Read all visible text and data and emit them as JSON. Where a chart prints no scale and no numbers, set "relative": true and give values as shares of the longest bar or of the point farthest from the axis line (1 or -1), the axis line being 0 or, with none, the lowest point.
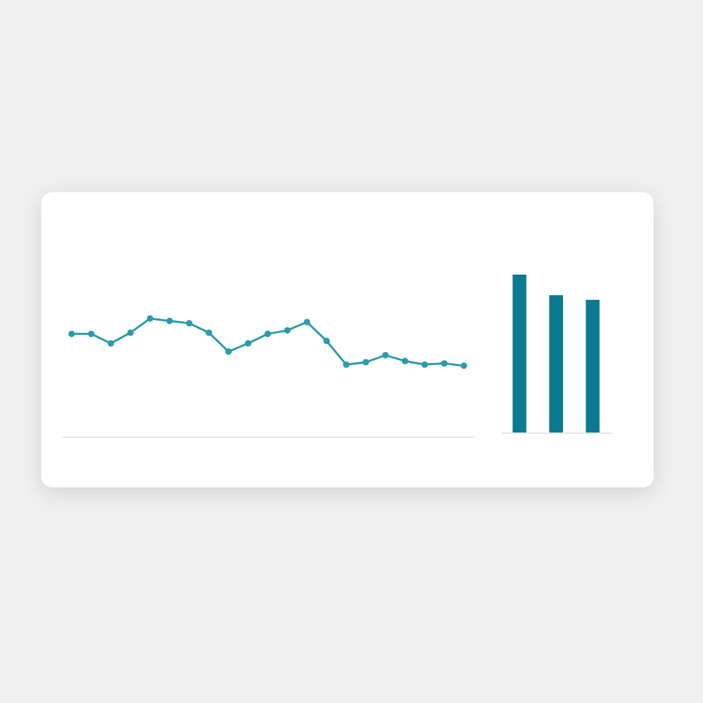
{
  "chart_data": [
    {
      "type": "line",
      "relative": true,
      "marker": "circle",
      "categories": [
        null,
        null,
        null,
        null,
        null,
        null,
        null,
        null,
        null,
        null,
        null,
        null,
        null,
        null,
        null,
        null,
        null,
        null,
        null,
        null,
        null
      ],
      "series": [
        {
          "color": "#2a9bab",
          "values": [
            0.87,
            0.87,
            0.79,
            0.88,
            1,
            0.98,
            0.96,
            0.88,
            0.72,
            0.79,
            0.87,
            0.9,
            0.97,
            0.81,
            0.61,
            0.63,
            0.69,
            0.64,
            0.61,
            0.62,
            0.6
          ]
        }
      ]
    },
    {
      "type": "bar",
      "relative": true,
      "categories": [
        null,
        null,
        null
      ],
      "colors": [
        "#0b7a91",
        "#0b7a91",
        "#0b7a91"
      ],
      "values": [
        1,
        0.87,
        0.84
      ]
    }
  ]
}
